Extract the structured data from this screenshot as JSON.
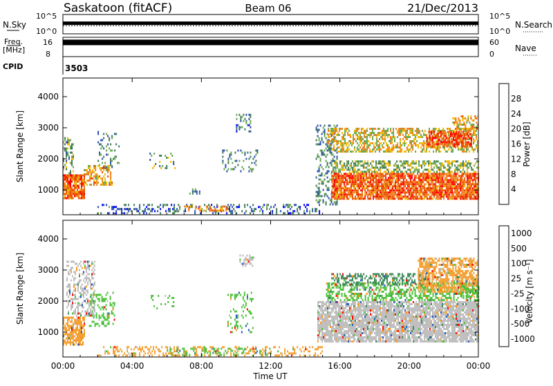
{
  "header": {
    "station": "Saskatoon (fitACF)",
    "beam": "Beam 06",
    "date": "21/Dec/2013"
  },
  "noise_panel": {
    "left_label": "N.Sky",
    "left_ticks": [
      "10^5",
      "10^0"
    ],
    "right_label": "N.Search",
    "right_ticks": [
      "10^5",
      "10^0"
    ],
    "sky_level": 0.55,
    "search_level": 0.35
  },
  "freq_panel": {
    "left_label_1": "Freq.",
    "left_label_2": "[MHz]",
    "left_ticks": [
      "16",
      "8"
    ],
    "right_label": "Nave",
    "right_ticks": [
      "60",
      "0"
    ],
    "freq_level": 0.45
  },
  "cpid": {
    "label": "CPID",
    "value": "3503"
  },
  "x_axis": {
    "label": "Time UT",
    "ticks": [
      "00:00",
      "04:00",
      "08:00",
      "12:00",
      "16:00",
      "20:00",
      "00:00"
    ],
    "range_hours": [
      0,
      24
    ]
  },
  "colors": {
    "power": [
      "#0000ff",
      "#2a4fb0",
      "#3f7a58",
      "#6aa84f",
      "#f0b800",
      "#f08020",
      "#e85000",
      "#ff0000"
    ],
    "velocity": [
      "#ff0000",
      "#ff8a00",
      "#f5a030",
      "#bdbdbd",
      "#bdbdbd",
      "#4cc13a",
      "#3c8a5a",
      "#2255bb"
    ]
  },
  "chart_data": [
    {
      "type": "heatmap",
      "name": "power",
      "xlabel": "Time UT",
      "ylabel": "Slant Range [km]",
      "xlim": [
        0,
        24
      ],
      "ylim": [
        200,
        4600
      ],
      "y_ticks": [
        1000,
        2000,
        3000,
        4000
      ],
      "colorbar": {
        "label": "Power [dB]",
        "ticks": [
          "4",
          "8",
          "12",
          "16",
          "20",
          "24",
          "28"
        ],
        "range": [
          0,
          32
        ]
      },
      "regions": [
        {
          "t0": 0.0,
          "t1": 1.2,
          "r0": 700,
          "r1": 1500,
          "value": 24,
          "density": 0.9
        },
        {
          "t0": 0.0,
          "t1": 0.6,
          "r0": 1550,
          "r1": 2700,
          "value": 13,
          "density": 0.45
        },
        {
          "t0": 1.2,
          "t1": 2.8,
          "r0": 1150,
          "r1": 1800,
          "value": 20,
          "density": 0.55
        },
        {
          "t0": 2.0,
          "t1": 3.2,
          "r0": 1700,
          "r1": 2900,
          "value": 10,
          "density": 0.2
        },
        {
          "t0": 5.0,
          "t1": 6.5,
          "r0": 1700,
          "r1": 2200,
          "value": 12,
          "density": 0.15
        },
        {
          "t0": 7.3,
          "t1": 7.9,
          "r0": 850,
          "r1": 1050,
          "value": 10,
          "density": 0.35
        },
        {
          "t0": 9.2,
          "t1": 11.2,
          "r0": 1600,
          "r1": 2300,
          "value": 10,
          "density": 0.2
        },
        {
          "t0": 10.0,
          "t1": 10.8,
          "r0": 2850,
          "r1": 3450,
          "value": 8,
          "density": 0.35
        },
        {
          "t0": 2.0,
          "t1": 14.8,
          "r0": 250,
          "r1": 550,
          "value": 8,
          "density": 0.3
        },
        {
          "t0": 7.0,
          "t1": 9.5,
          "r0": 300,
          "r1": 500,
          "value": 22,
          "density": 0.35
        },
        {
          "t0": 14.6,
          "t1": 15.8,
          "r0": 500,
          "r1": 3100,
          "value": 10,
          "density": 0.35
        },
        {
          "t0": 15.5,
          "t1": 24.0,
          "r0": 700,
          "r1": 1550,
          "value": 25,
          "density": 0.85
        },
        {
          "t0": 15.5,
          "t1": 24.0,
          "r0": 1550,
          "r1": 1950,
          "value": 14,
          "density": 0.55
        },
        {
          "t0": 15.3,
          "t1": 24.0,
          "r0": 2200,
          "r1": 3000,
          "value": 18,
          "density": 0.55
        },
        {
          "t0": 21.0,
          "t1": 23.6,
          "r0": 2400,
          "r1": 2900,
          "value": 26,
          "density": 0.7
        },
        {
          "t0": 22.5,
          "t1": 24.0,
          "r0": 2900,
          "r1": 3400,
          "value": 20,
          "density": 0.45
        }
      ]
    },
    {
      "type": "heatmap",
      "name": "velocity",
      "xlabel": "Time UT",
      "ylabel": "Slant Range [km]",
      "xlim": [
        0,
        24
      ],
      "ylim": [
        200,
        4600
      ],
      "y_ticks": [
        1000,
        2000,
        3000,
        4000
      ],
      "colorbar": {
        "label": "Velocity [m s⁻¹]",
        "ticks": [
          "1000",
          "500",
          "100",
          "25",
          "-25",
          "-100",
          "-500",
          "-1000"
        ]
      },
      "regions": [
        {
          "t0": 0.0,
          "t1": 1.2,
          "r0": 600,
          "r1": 1500,
          "value": "-100",
          "density": 0.7
        },
        {
          "t0": 0.2,
          "t1": 1.8,
          "r0": 1500,
          "r1": 3300,
          "value": "25",
          "density": 0.4
        },
        {
          "t0": 1.5,
          "t1": 3.0,
          "r0": 1200,
          "r1": 2300,
          "value": "100",
          "density": 0.35
        },
        {
          "t0": 5.0,
          "t1": 6.5,
          "r0": 1700,
          "r1": 2200,
          "value": "100",
          "density": 0.15
        },
        {
          "t0": 2.0,
          "t1": 15.0,
          "r0": 250,
          "r1": 550,
          "value": "-100",
          "density": 0.3
        },
        {
          "t0": 6.0,
          "t1": 12.0,
          "r0": 250,
          "r1": 500,
          "value": "100",
          "density": 0.25
        },
        {
          "t0": 9.5,
          "t1": 11.0,
          "r0": 1000,
          "r1": 2300,
          "value": "100",
          "density": 0.2
        },
        {
          "t0": 10.2,
          "t1": 11.0,
          "r0": 3100,
          "r1": 3500,
          "value": "25",
          "density": 0.5
        },
        {
          "t0": 14.7,
          "t1": 24.0,
          "r0": 700,
          "r1": 2000,
          "value": "25",
          "density": 0.85
        },
        {
          "t0": 15.2,
          "t1": 24.0,
          "r0": 2000,
          "r1": 2600,
          "value": "100",
          "density": 0.5
        },
        {
          "t0": 15.5,
          "t1": 21.0,
          "r0": 2500,
          "r1": 2900,
          "value": "500",
          "density": 0.45
        },
        {
          "t0": 20.5,
          "t1": 24.0,
          "r0": 2300,
          "r1": 3400,
          "value": "-100",
          "density": 0.65
        },
        {
          "t0": 23.0,
          "t1": 24.0,
          "r0": 2100,
          "r1": 2500,
          "value": "100",
          "density": 0.6
        }
      ]
    }
  ]
}
